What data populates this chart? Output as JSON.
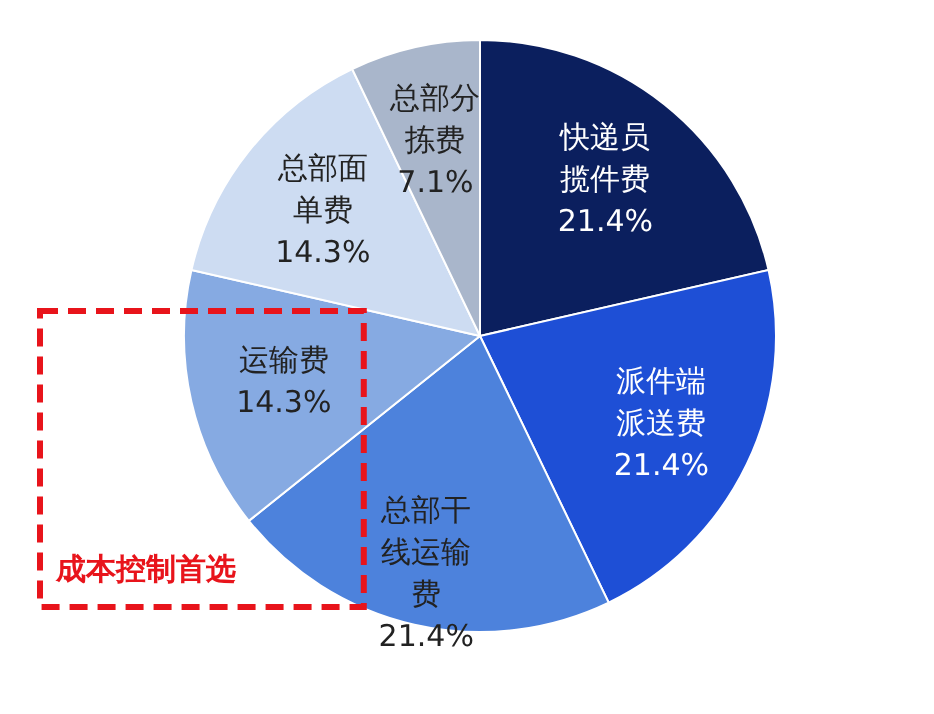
{
  "chart_data": {
    "type": "pie",
    "categories": [
      "快递员揽件费",
      "派件端派送费",
      "总部干线运输费",
      "运输费",
      "总部面单费",
      "总部分拣费"
    ],
    "values": [
      21.4,
      21.4,
      21.4,
      14.3,
      14.3,
      7.1
    ],
    "value_labels": [
      "21.4%",
      "21.4%",
      "21.4%",
      "14.3%",
      "14.3%",
      "7.1%"
    ],
    "colors": [
      "#0b1f5e",
      "#1e4fd6",
      "#4d82dc",
      "#86aae2",
      "#cddcf2",
      "#a9b6cb"
    ],
    "annotations": [
      "成本控制首选"
    ]
  }
}
